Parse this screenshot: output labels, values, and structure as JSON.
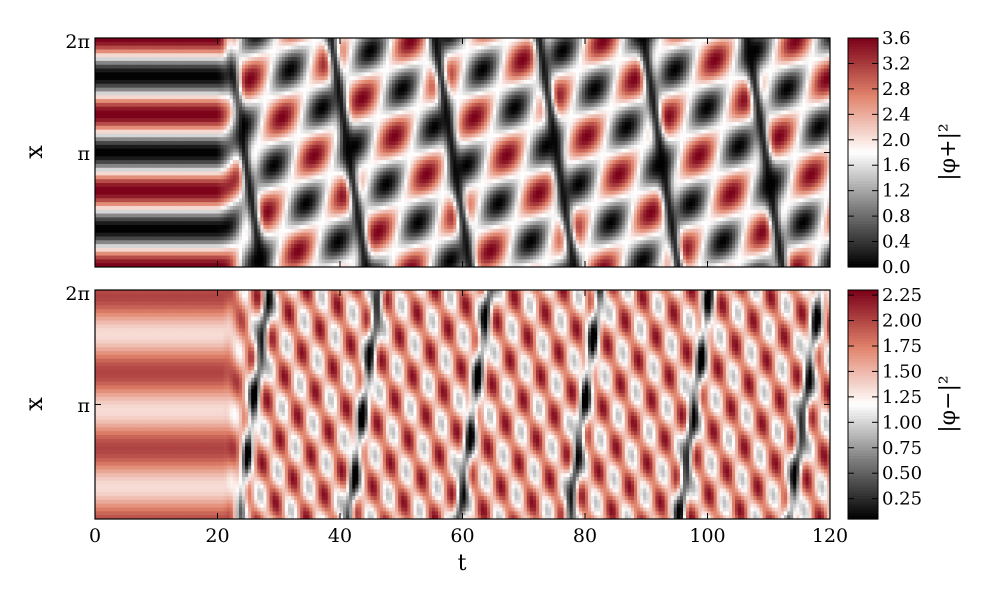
{
  "chart_data": [
    {
      "type": "heatmap",
      "title": "",
      "xlabel": "",
      "ylabel": "x",
      "xlim": [
        0,
        120
      ],
      "ylim": [
        0,
        6.2832
      ],
      "yticks": [
        {
          "value": 3.1416,
          "label": "π"
        },
        {
          "value": 6.2832,
          "label": "2π"
        }
      ],
      "colorbar": {
        "label": "|φ+|²",
        "range": [
          0.0,
          3.6
        ],
        "ticks": [
          "0.0",
          "0.4",
          "0.8",
          "1.2",
          "1.6",
          "2.0",
          "2.4",
          "2.8",
          "3.2",
          "3.6"
        ],
        "colormap": [
          "#000000",
          "#7a7a7a",
          "#ffffff",
          "#e0826a",
          "#7a0018"
        ]
      }
    },
    {
      "type": "heatmap",
      "title": "",
      "xlabel": "t",
      "ylabel": "x",
      "xlim": [
        0,
        120
      ],
      "ylim": [
        0,
        6.2832
      ],
      "xticks": [
        "0",
        "20",
        "40",
        "60",
        "80",
        "100",
        "120"
      ],
      "yticks": [
        {
          "value": 3.1416,
          "label": "π"
        },
        {
          "value": 6.2832,
          "label": "2π"
        }
      ],
      "colorbar": {
        "label": "|φ−|²",
        "range": [
          0.05,
          2.3
        ],
        "ticks": [
          "0.25",
          "0.50",
          "0.75",
          "1.00",
          "1.25",
          "1.50",
          "1.75",
          "2.00",
          "2.25"
        ],
        "colormap": [
          "#000000",
          "#7a7a7a",
          "#ffffff",
          "#e0826a",
          "#7a0018"
        ]
      }
    }
  ]
}
